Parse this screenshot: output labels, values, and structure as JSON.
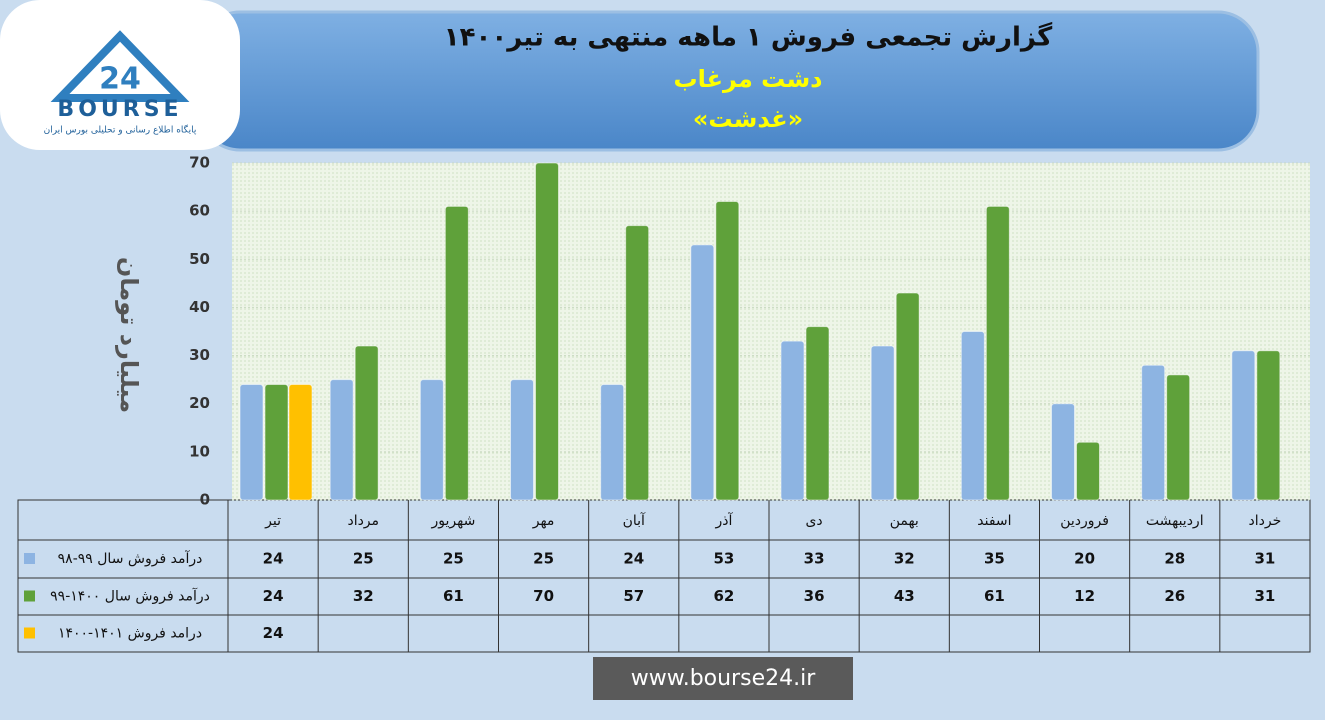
{
  "chart_data": {
    "type": "bar",
    "title": "گزارش تجمعی فروش ۱ ماهه منتهی به تیر۱۴۰۰",
    "subtitles": [
      "دشت مرغاب",
      "«غدشت»"
    ],
    "y_label": "میلیارد تومان",
    "categories": [
      "تیر",
      "مرداد",
      "شهریور",
      "مهر",
      "آبان",
      "آذر",
      "دی",
      "بهمن",
      "اسفند",
      "فروردین",
      "اردیبهشت",
      "خرداد"
    ],
    "series": [
      {
        "name": "درآمد فروش سال ۹۹-۹۸",
        "color": "#8db4e2",
        "values": [
          24,
          25,
          25,
          25,
          24,
          53,
          33,
          32,
          35,
          20,
          28,
          31
        ]
      },
      {
        "name": "درآمد فروش سال ۱۴۰۰-۹۹",
        "color": "#5fa13a",
        "values": [
          24,
          32,
          61,
          70,
          57,
          62,
          36,
          43,
          61,
          12,
          26,
          31
        ]
      },
      {
        "name": "درامد فروش ۱۴۰۱-۱۴۰۰",
        "color": "#ffc000",
        "values": [
          24,
          null,
          null,
          null,
          null,
          null,
          null,
          null,
          null,
          null,
          null,
          null
        ]
      }
    ],
    "ylim": [
      0,
      70
    ],
    "yticks": [
      0,
      10,
      20,
      30,
      40,
      50,
      60,
      70
    ],
    "grid": true
  },
  "logo": {
    "brand": "BOURSE",
    "number": "24",
    "tagline": "پایگاه اطلاع رسانی و تحلیلی بورس ایران"
  },
  "footer": "www.bourse24.ir"
}
